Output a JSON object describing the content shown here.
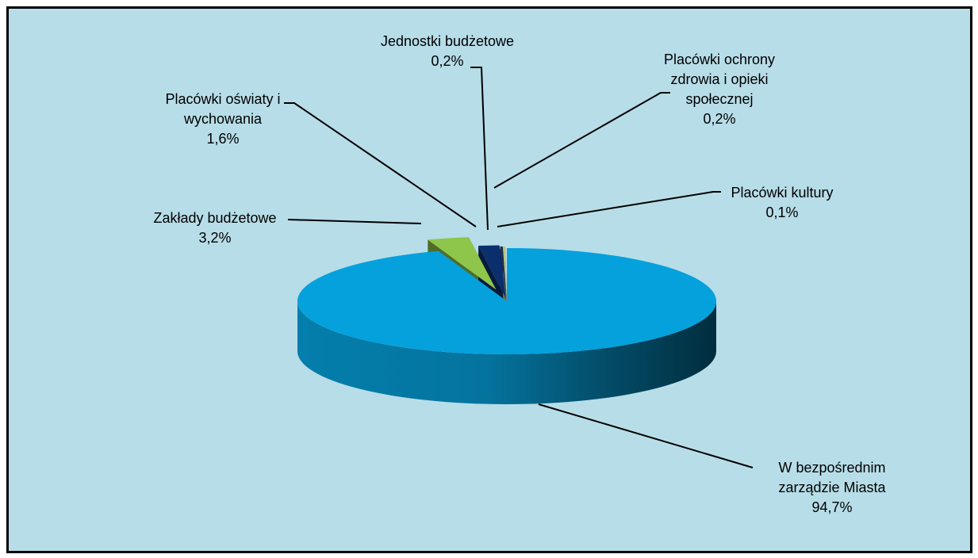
{
  "chart_data": {
    "type": "pie",
    "title": "",
    "three_d": true,
    "legend": "none",
    "series": [
      {
        "slices": [
          {
            "label_lines": [
              "W bezpośrednim",
              "zarządzie Miasta"
            ],
            "value": 94.7,
            "value_label": "94,7%",
            "color": "#05a1dc"
          },
          {
            "label_lines": [
              "Zakłady budżetowe"
            ],
            "value": 3.2,
            "value_label": "3,2%",
            "color": "#8dc64b"
          },
          {
            "label_lines": [
              "Placówki oświaty i",
              "wychowania"
            ],
            "value": 1.6,
            "value_label": "1,6%",
            "color": "#0b2f6d"
          },
          {
            "label_lines": [
              "Jednostki budżetowe"
            ],
            "value": 0.2,
            "value_label": "0,2%",
            "color": "#1b2c56"
          },
          {
            "label_lines": [
              "Placówki ochrony",
              "zdrowia i opieki",
              "społecznej"
            ],
            "value": 0.2,
            "value_label": "0,2%",
            "color": "#b0c878"
          },
          {
            "label_lines": [
              "Placówki kultury"
            ],
            "value": 0.1,
            "value_label": "0,1%",
            "color": "#c8d8e8"
          }
        ]
      }
    ],
    "colors": {
      "background": "#b7dde8",
      "border": "#000000",
      "leader_line": "#000000"
    }
  }
}
